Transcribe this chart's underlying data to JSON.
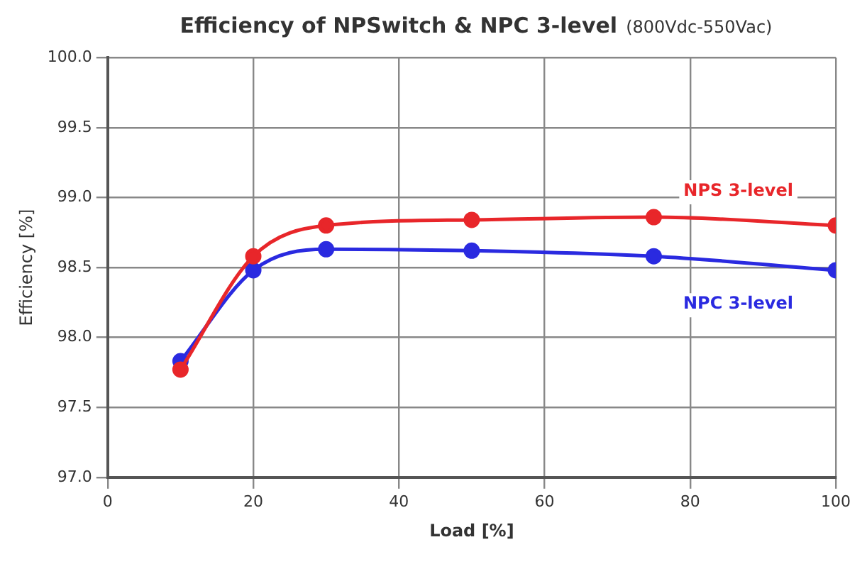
{
  "chart_data": {
    "type": "line",
    "title": "Efficiency of NPSwitch & NPC 3-level",
    "subtitle": "(800Vdc-550Vac)",
    "xlabel": "Load [%]",
    "ylabel": "Efficiency [%]",
    "x": [
      10,
      20,
      30,
      50,
      75,
      100
    ],
    "series": [
      {
        "name": "NPS 3-level",
        "color": "#e8262a",
        "values": [
          97.77,
          98.58,
          98.8,
          98.84,
          98.86,
          98.8
        ]
      },
      {
        "name": "NPC 3-level",
        "color": "#2a2ae0",
        "values": [
          97.83,
          98.48,
          98.63,
          98.62,
          98.58,
          98.48
        ]
      }
    ],
    "xlim": [
      0,
      100
    ],
    "xticks": [
      0,
      20,
      40,
      60,
      80,
      100
    ],
    "ylim": [
      97,
      100
    ],
    "yticks": [
      {
        "value": 97,
        "label": "97.0"
      },
      {
        "value": 97.5,
        "label": "97.5"
      },
      {
        "value": 98,
        "label": "98.0"
      },
      {
        "value": 98.5,
        "label": "98.5"
      },
      {
        "value": 99,
        "label": "99.0"
      },
      {
        "value": 99.5,
        "label": "99.5"
      },
      {
        "value": 100,
        "label": "100.0"
      }
    ],
    "grid": true,
    "legend": false,
    "marker": "circle",
    "line_style": "solid"
  }
}
